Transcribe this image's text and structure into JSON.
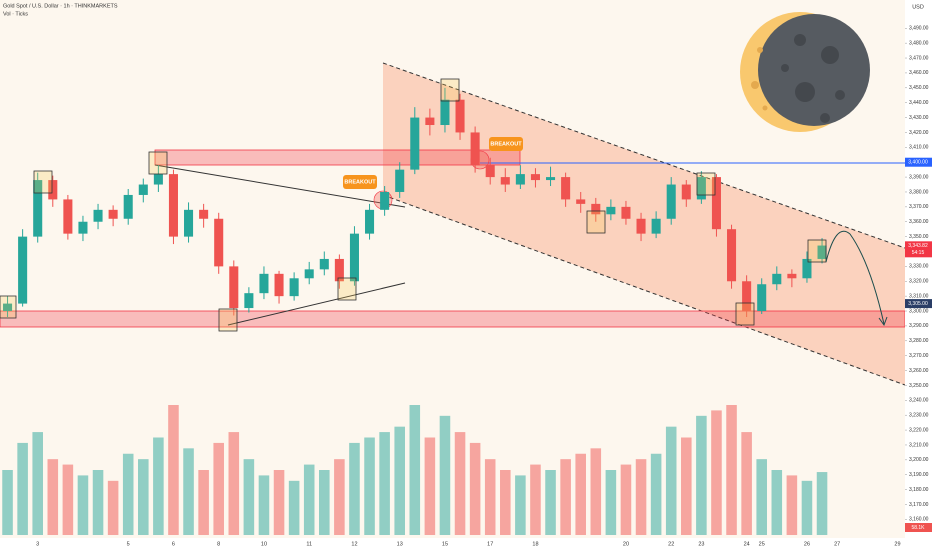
{
  "chart_data": {
    "type": "candlestick",
    "title": "Gold Spot / U.S. Dollar · 1h · THINKMARKETS",
    "subtitle": "Vol · Ticks",
    "currency": "USD",
    "annotations": [
      "BREAKOUT",
      "BREAKOUT"
    ],
    "up_color": "#26a69a",
    "down_color": "#ef5350",
    "ylim": [
      3149.5,
      3509
    ],
    "yticks": [
      {
        "value": 3160,
        "label": "3,160.00"
      },
      {
        "value": 3170,
        "label": "3,170.00"
      },
      {
        "value": 3180,
        "label": "3,180.00"
      },
      {
        "value": 3190,
        "label": "3,190.00"
      },
      {
        "value": 3200,
        "label": "3,200.00"
      },
      {
        "value": 3210,
        "label": "3,210.00"
      },
      {
        "value": 3220,
        "label": "3,220.00"
      },
      {
        "value": 3230,
        "label": "3,230.00"
      },
      {
        "value": 3240,
        "label": "3,240.00"
      },
      {
        "value": 3250,
        "label": "3,250.00"
      },
      {
        "value": 3260,
        "label": "3,260.00"
      },
      {
        "value": 3270,
        "label": "3,270.00"
      },
      {
        "value": 3280,
        "label": "3,280.00"
      },
      {
        "value": 3290,
        "label": "3,290.00"
      },
      {
        "value": 3300,
        "label": "3,300.00"
      },
      {
        "value": 3310,
        "label": "3,310.00"
      },
      {
        "value": 3320,
        "label": "3,320.00"
      },
      {
        "value": 3330,
        "label": "3,330.00"
      },
      {
        "value": 3340,
        "label": "3,340.00"
      },
      {
        "value": 3350,
        "label": "3,350.00"
      },
      {
        "value": 3360,
        "label": "3,360.00"
      },
      {
        "value": 3370,
        "label": "3,370.00"
      },
      {
        "value": 3380,
        "label": "3,380.00"
      },
      {
        "value": 3390,
        "label": "3,390.00"
      },
      {
        "value": 3400,
        "label": "3,400.00"
      },
      {
        "value": 3410,
        "label": "3,410.00"
      },
      {
        "value": 3420,
        "label": "3,420.00"
      },
      {
        "value": 3430,
        "label": "3,430.00"
      },
      {
        "value": 3440,
        "label": "3,440.00"
      },
      {
        "value": 3450,
        "label": "3,450.00"
      },
      {
        "value": 3460,
        "label": "3,460.00"
      },
      {
        "value": 3470,
        "label": "3,470.00"
      },
      {
        "value": 3480,
        "label": "3,480.00"
      },
      {
        "value": 3490,
        "label": "3,490.00"
      }
    ],
    "price_labels": [
      {
        "value": 3400,
        "label": "3,400.00",
        "color": "#2962ff"
      },
      {
        "value": 3343.82,
        "label": "3,343.82",
        "color": "#f23645",
        "sub": "54:15"
      },
      {
        "value": 3305,
        "label": "3,305.00",
        "color": "#2a3d66"
      }
    ],
    "categories": [
      null,
      null,
      "3",
      null,
      null,
      null,
      null,
      null,
      "5",
      null,
      null,
      "6",
      null,
      null,
      "8",
      null,
      null,
      "10",
      null,
      null,
      "11",
      null,
      null,
      "12",
      null,
      null,
      "13",
      null,
      null,
      "15",
      null,
      null,
      "17",
      null,
      null,
      "18",
      null,
      null,
      null,
      null,
      null,
      "20",
      null,
      null,
      "22",
      null,
      "23",
      null,
      null,
      "24",
      "25",
      null,
      null,
      "26",
      null,
      "27",
      null,
      null,
      null,
      "29"
    ],
    "candles": [
      [
        3300,
        3310,
        3296,
        3305
      ],
      [
        3305,
        3355,
        3303,
        3350
      ],
      [
        3350,
        3393,
        3346,
        3388
      ],
      [
        3388,
        3391,
        3370,
        3375
      ],
      [
        3375,
        3378,
        3348,
        3352
      ],
      [
        3352,
        3364,
        3347,
        3360
      ],
      [
        3360,
        3372,
        3355,
        3368
      ],
      [
        3368,
        3371,
        3357,
        3362
      ],
      [
        3362,
        3382,
        3358,
        3378
      ],
      [
        3378,
        3389,
        3373,
        3385
      ],
      [
        3385,
        3398,
        3380,
        3392
      ],
      [
        3392,
        3395,
        3345,
        3350
      ],
      [
        3350,
        3373,
        3346,
        3368
      ],
      [
        3368,
        3372,
        3356,
        3362
      ],
      [
        3362,
        3366,
        3325,
        3330
      ],
      [
        3330,
        3334,
        3297,
        3302
      ],
      [
        3302,
        3316,
        3299,
        3312
      ],
      [
        3312,
        3330,
        3308,
        3325
      ],
      [
        3325,
        3327,
        3305,
        3310
      ],
      [
        3310,
        3326,
        3307,
        3322
      ],
      [
        3322,
        3333,
        3318,
        3328
      ],
      [
        3328,
        3340,
        3324,
        3335
      ],
      [
        3335,
        3338,
        3315,
        3320
      ],
      [
        3320,
        3357,
        3317,
        3352
      ],
      [
        3352,
        3372,
        3348,
        3368
      ],
      [
        3368,
        3384,
        3364,
        3380
      ],
      [
        3380,
        3400,
        3376,
        3395
      ],
      [
        3395,
        3437,
        3392,
        3430
      ],
      [
        3430,
        3436,
        3418,
        3425
      ],
      [
        3425,
        3450,
        3420,
        3442
      ],
      [
        3442,
        3446,
        3415,
        3420
      ],
      [
        3420,
        3424,
        3393,
        3398
      ],
      [
        3398,
        3403,
        3385,
        3390
      ],
      [
        3390,
        3396,
        3380,
        3385
      ],
      [
        3385,
        3398,
        3382,
        3392
      ],
      [
        3392,
        3396,
        3383,
        3388
      ],
      [
        3388,
        3397,
        3384,
        3390
      ],
      [
        3390,
        3393,
        3370,
        3375
      ],
      [
        3375,
        3380,
        3366,
        3372
      ],
      [
        3372,
        3376,
        3360,
        3365
      ],
      [
        3365,
        3375,
        3361,
        3370
      ],
      [
        3370,
        3374,
        3358,
        3362
      ],
      [
        3362,
        3366,
        3347,
        3352
      ],
      [
        3352,
        3367,
        3349,
        3362
      ],
      [
        3362,
        3390,
        3358,
        3385
      ],
      [
        3385,
        3388,
        3370,
        3375
      ],
      [
        3375,
        3394,
        3372,
        3390
      ],
      [
        3390,
        3392,
        3350,
        3355
      ],
      [
        3355,
        3358,
        3315,
        3320
      ],
      [
        3320,
        3324,
        3296,
        3300
      ],
      [
        3300,
        3322,
        3298,
        3318
      ],
      [
        3318,
        3330,
        3314,
        3325
      ],
      [
        3325,
        3328,
        3316,
        3322
      ],
      [
        3322,
        3340,
        3319,
        3335
      ],
      [
        3335,
        3349,
        3332,
        3344
      ],
      null,
      null,
      null,
      null,
      null
    ],
    "volume": [
      60000,
      85000,
      95000,
      70000,
      65000,
      55000,
      60000,
      50000,
      75000,
      70000,
      90000,
      120000,
      80000,
      60000,
      85000,
      95000,
      70000,
      55000,
      60000,
      50000,
      65000,
      60000,
      70000,
      85000,
      90000,
      95000,
      100000,
      120000,
      90000,
      110000,
      95000,
      85000,
      70000,
      60000,
      55000,
      65000,
      60000,
      70000,
      75000,
      80000,
      60000,
      65000,
      70000,
      75000,
      100000,
      90000,
      110000,
      115000,
      120000,
      95000,
      70000,
      60000,
      55000,
      50000,
      58100,
      null,
      null,
      null,
      null,
      null
    ],
    "volume_last_label": "58.1K"
  }
}
